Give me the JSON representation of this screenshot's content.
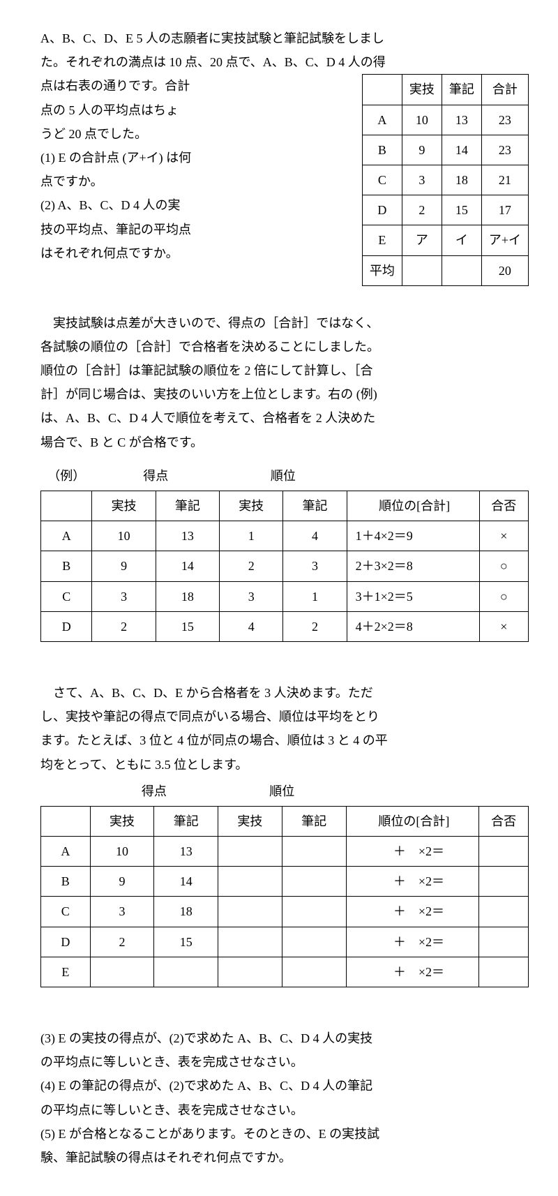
{
  "intro": {
    "l1": "A、B、C、D、E 5 人の志願者に実技試験と筆記試験をしまし",
    "l2": "た。それぞれの満点は 10 点、20 点で、A、B、C、D 4 人の得",
    "l3": "点は右表の通りです。合計",
    "l4": "点の 5 人の平均点はちょ",
    "l5": "うど 20 点でした。",
    "q1a": "(1) E の合計点 (ア+イ) は何",
    "q1b": "点ですか。",
    "q2a": "(2) A、B、C、D 4 人の実",
    "q2b": "技の平均点、筆記の平均点",
    "q2c": "はそれぞれ何点ですか。"
  },
  "score_table": {
    "h_jitsugi": "実技",
    "h_hikki": "筆記",
    "h_goukei": "合計",
    "rows": [
      {
        "n": "A",
        "j": "10",
        "h": "13",
        "g": "23"
      },
      {
        "n": "B",
        "j": "9",
        "h": "14",
        "g": "23"
      },
      {
        "n": "C",
        "j": "3",
        "h": "18",
        "g": "21"
      },
      {
        "n": "D",
        "j": "2",
        "h": "15",
        "g": "17"
      },
      {
        "n": "E",
        "j": "ア",
        "h": "イ",
        "g": "ア+イ"
      }
    ],
    "avg_label": "平均",
    "avg_val": "20"
  },
  "mid": {
    "l1": "　実技試験は点差が大きいので、得点の［合計］ではなく、",
    "l2": "各試験の順位の［合計］で合格者を決めることにしました。",
    "l3": "順位の［合計］は筆記試験の順位を 2 倍にして計算し、［合",
    "l4": "計］が同じ場合は、実技のいい方を上位とします。右の (例)",
    "l5": "は、A、B、C、D 4 人で順位を考えて、合格者を 2 人決めた",
    "l6": "場合で、B と C が合格です。"
  },
  "example": {
    "label": "（例）",
    "h_tokuten": "得点",
    "h_juni": "順位",
    "h_jitsugi": "実技",
    "h_hikki": "筆記",
    "h_sum": "順位の[合計]",
    "h_pass": "合否",
    "rows": [
      {
        "n": "A",
        "sj": "10",
        "sh": "13",
        "rj": "1",
        "rh": "4",
        "sum": "1＋4×2＝9",
        "p": "×"
      },
      {
        "n": "B",
        "sj": "9",
        "sh": "14",
        "rj": "2",
        "rh": "3",
        "sum": "2＋3×2＝8",
        "p": "○"
      },
      {
        "n": "C",
        "sj": "3",
        "sh": "18",
        "rj": "3",
        "rh": "1",
        "sum": "3＋1×2＝5",
        "p": "○"
      },
      {
        "n": "D",
        "sj": "2",
        "sh": "15",
        "rj": "4",
        "rh": "2",
        "sum": "4＋2×2＝8",
        "p": "×"
      }
    ]
  },
  "mid2": {
    "l1": "　さて、A、B、C、D、E から合格者を 3 人決めます。ただ",
    "l2": "し、実技や筆記の得点で同点がいる場合、順位は平均をとり",
    "l3": "ます。たとえば、3 位と 4 位が同点の場合、順位は 3 と 4 の平",
    "l4": "均をとって、ともに 3.5 位とします。"
  },
  "blank_table": {
    "h_tokuten": "得点",
    "h_juni": "順位",
    "h_jitsugi": "実技",
    "h_hikki": "筆記",
    "h_sum": "順位の[合計]",
    "h_pass": "合否",
    "rows": [
      {
        "n": "A",
        "sj": "10",
        "sh": "13",
        "sum": "　＋　×2＝"
      },
      {
        "n": "B",
        "sj": "9",
        "sh": "14",
        "sum": "　＋　×2＝"
      },
      {
        "n": "C",
        "sj": "3",
        "sh": "18",
        "sum": "　＋　×2＝"
      },
      {
        "n": "D",
        "sj": "2",
        "sh": "15",
        "sum": "　＋　×2＝"
      },
      {
        "n": "E",
        "sj": "",
        "sh": "",
        "sum": "　＋　×2＝"
      }
    ]
  },
  "q3": {
    "a": "(3) E の実技の得点が、(2)で求めた A、B、C、D 4 人の実技",
    "b": "の平均点に等しいとき、表を完成させなさい。"
  },
  "q4": {
    "a": "(4) E の筆記の得点が、(2)で求めた A、B、C、D 4 人の筆記",
    "b": "の平均点に等しいとき、表を完成させなさい。"
  },
  "q5": {
    "a": "(5) E が合格となることがあります。そのときの、E の実技試",
    "b": "験、筆記試験の得点はそれぞれ何点ですか。"
  }
}
